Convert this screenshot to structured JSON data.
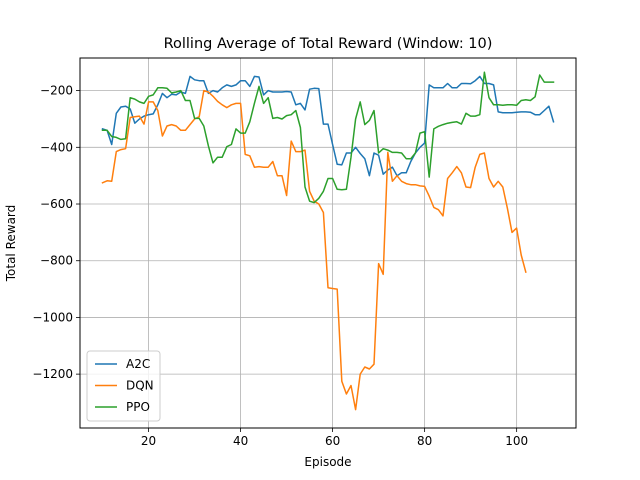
{
  "chart_data": {
    "type": "line",
    "title": "Rolling Average of Total Reward (Window: 10)",
    "xlabel": "Episode",
    "ylabel": "Total Reward",
    "xlim": [
      5.1,
      112.9
    ],
    "ylim": [
      -1390,
      -85
    ],
    "xticks": [
      20,
      40,
      60,
      80,
      100
    ],
    "yticks": [
      -1200,
      -1000,
      -800,
      -600,
      -400,
      -200
    ],
    "grid": true,
    "legend_position": "lower-left",
    "colors": {
      "A2C": "#1f77b4",
      "DQN": "#ff7f0e",
      "PPO": "#2ca02c"
    },
    "series": [
      {
        "name": "A2C",
        "x": [
          10,
          11,
          12,
          13,
          14,
          15,
          16,
          17,
          18,
          19,
          20,
          21,
          22,
          23,
          24,
          25,
          26,
          27,
          28,
          29,
          30,
          31,
          32,
          33,
          34,
          35,
          36,
          37,
          38,
          39,
          40,
          41,
          42,
          43,
          44,
          45,
          46,
          47,
          48,
          49,
          50,
          51,
          52,
          53,
          54,
          55,
          56,
          57,
          58,
          59,
          60,
          61,
          62,
          63,
          64,
          65,
          66,
          67,
          68,
          69,
          70,
          71,
          72,
          73,
          74,
          75,
          76,
          77,
          78,
          79,
          80,
          81,
          82,
          83,
          84,
          85,
          86,
          87,
          88,
          89,
          90,
          91,
          92,
          93,
          94,
          95,
          96,
          97,
          98,
          99,
          100,
          101,
          102,
          103,
          104,
          105,
          106,
          107,
          108
        ],
        "y": [
          -335,
          -340,
          -390,
          -280,
          -258,
          -255,
          -265,
          -315,
          -300,
          -290,
          -285,
          -282,
          -250,
          -210,
          -225,
          -213,
          -215,
          -205,
          -210,
          -150,
          -162,
          -165,
          -165,
          -210,
          -200,
          -205,
          -190,
          -180,
          -185,
          -180,
          -165,
          -165,
          -185,
          -150,
          -152,
          -215,
          -200,
          -205,
          -205,
          -205,
          -203,
          -205,
          -250,
          -245,
          -268,
          -195,
          -192,
          -193,
          -318,
          -318,
          -390,
          -460,
          -462,
          -420,
          -420,
          -400,
          -422,
          -440,
          -500,
          -420,
          -428,
          -495,
          -480,
          -470,
          -500,
          -490,
          -490,
          -450,
          -420,
          -400,
          -385,
          -180,
          -190,
          -190,
          -190,
          -175,
          -190,
          -190,
          -175,
          -175,
          -176,
          -165,
          -150,
          -175,
          -175,
          -180,
          -275,
          -278,
          -278,
          -278,
          -276,
          -275,
          -275,
          -276,
          -285,
          -285,
          -270,
          -255,
          -310
        ]
      },
      {
        "name": "DQN",
        "x": [
          10,
          11,
          12,
          13,
          14,
          15,
          16,
          17,
          18,
          19,
          20,
          21,
          22,
          23,
          24,
          25,
          26,
          27,
          28,
          29,
          30,
          31,
          32,
          33,
          34,
          35,
          36,
          37,
          38,
          39,
          40,
          41,
          42,
          43,
          44,
          45,
          46,
          47,
          48,
          49,
          50,
          51,
          52,
          53,
          54,
          55,
          56,
          57,
          58,
          59,
          60,
          61,
          62,
          63,
          64,
          65,
          66,
          67,
          68,
          69,
          70,
          71,
          72,
          73,
          74,
          75,
          76,
          77,
          78,
          79,
          80,
          81,
          82,
          83,
          84,
          85,
          86,
          87,
          88,
          89,
          90,
          91,
          92,
          93,
          94,
          95,
          96,
          97,
          98,
          99,
          100,
          101,
          102
        ],
        "y": [
          -525,
          -518,
          -520,
          -415,
          -408,
          -405,
          -295,
          -292,
          -290,
          -318,
          -240,
          -240,
          -270,
          -360,
          -325,
          -320,
          -325,
          -340,
          -340,
          -320,
          -300,
          -292,
          -200,
          -205,
          -220,
          -238,
          -250,
          -260,
          -250,
          -245,
          -245,
          -425,
          -430,
          -470,
          -468,
          -470,
          -470,
          -450,
          -500,
          -500,
          -570,
          -378,
          -415,
          -415,
          -410,
          -555,
          -590,
          -600,
          -630,
          -895,
          -898,
          -900,
          -1225,
          -1270,
          -1240,
          -1325,
          -1200,
          -1175,
          -1182,
          -1165,
          -810,
          -848,
          -418,
          -520,
          -500,
          -520,
          -528,
          -532,
          -532,
          -536,
          -538,
          -572,
          -612,
          -620,
          -642,
          -510,
          -490,
          -468,
          -490,
          -540,
          -542,
          -470,
          -425,
          -420,
          -510,
          -540,
          -520,
          -540,
          -615,
          -700,
          -685,
          -780,
          -840
        ]
      },
      {
        "name": "PPO",
        "x": [
          10,
          11,
          12,
          13,
          14,
          15,
          16,
          17,
          18,
          19,
          20,
          21,
          22,
          23,
          24,
          25,
          26,
          27,
          28,
          29,
          30,
          31,
          32,
          33,
          34,
          35,
          36,
          37,
          38,
          39,
          40,
          41,
          42,
          43,
          44,
          45,
          46,
          47,
          48,
          49,
          50,
          51,
          52,
          53,
          54,
          55,
          56,
          57,
          58,
          59,
          60,
          61,
          62,
          63,
          64,
          65,
          66,
          67,
          68,
          69,
          70,
          71,
          72,
          73,
          74,
          75,
          76,
          77,
          78,
          79,
          80,
          81,
          82,
          83,
          84,
          85,
          86,
          87,
          88,
          89,
          90,
          91,
          92,
          93,
          94,
          95,
          96,
          97,
          98,
          99,
          100,
          101,
          102,
          103,
          104,
          105,
          106,
          107,
          108
        ],
        "y": [
          -340,
          -340,
          -362,
          -365,
          -372,
          -370,
          -225,
          -230,
          -240,
          -245,
          -220,
          -215,
          -190,
          -190,
          -192,
          -208,
          -205,
          -200,
          -235,
          -235,
          -298,
          -298,
          -325,
          -395,
          -455,
          -435,
          -435,
          -398,
          -390,
          -335,
          -350,
          -350,
          -310,
          -245,
          -185,
          -245,
          -225,
          -298,
          -295,
          -300,
          -288,
          -285,
          -270,
          -330,
          -540,
          -590,
          -595,
          -580,
          -555,
          -510,
          -510,
          -548,
          -550,
          -548,
          -435,
          -300,
          -240,
          -320,
          -305,
          -270,
          -420,
          -405,
          -410,
          -418,
          -418,
          -420,
          -440,
          -440,
          -420,
          -350,
          -345,
          -505,
          -335,
          -326,
          -320,
          -315,
          -312,
          -310,
          -318,
          -280,
          -290,
          -290,
          -285,
          -135,
          -225,
          -250,
          -250,
          -252,
          -250,
          -250,
          -252,
          -235,
          -232,
          -235,
          -222,
          -145,
          -170,
          -170,
          -170
        ]
      }
    ]
  }
}
